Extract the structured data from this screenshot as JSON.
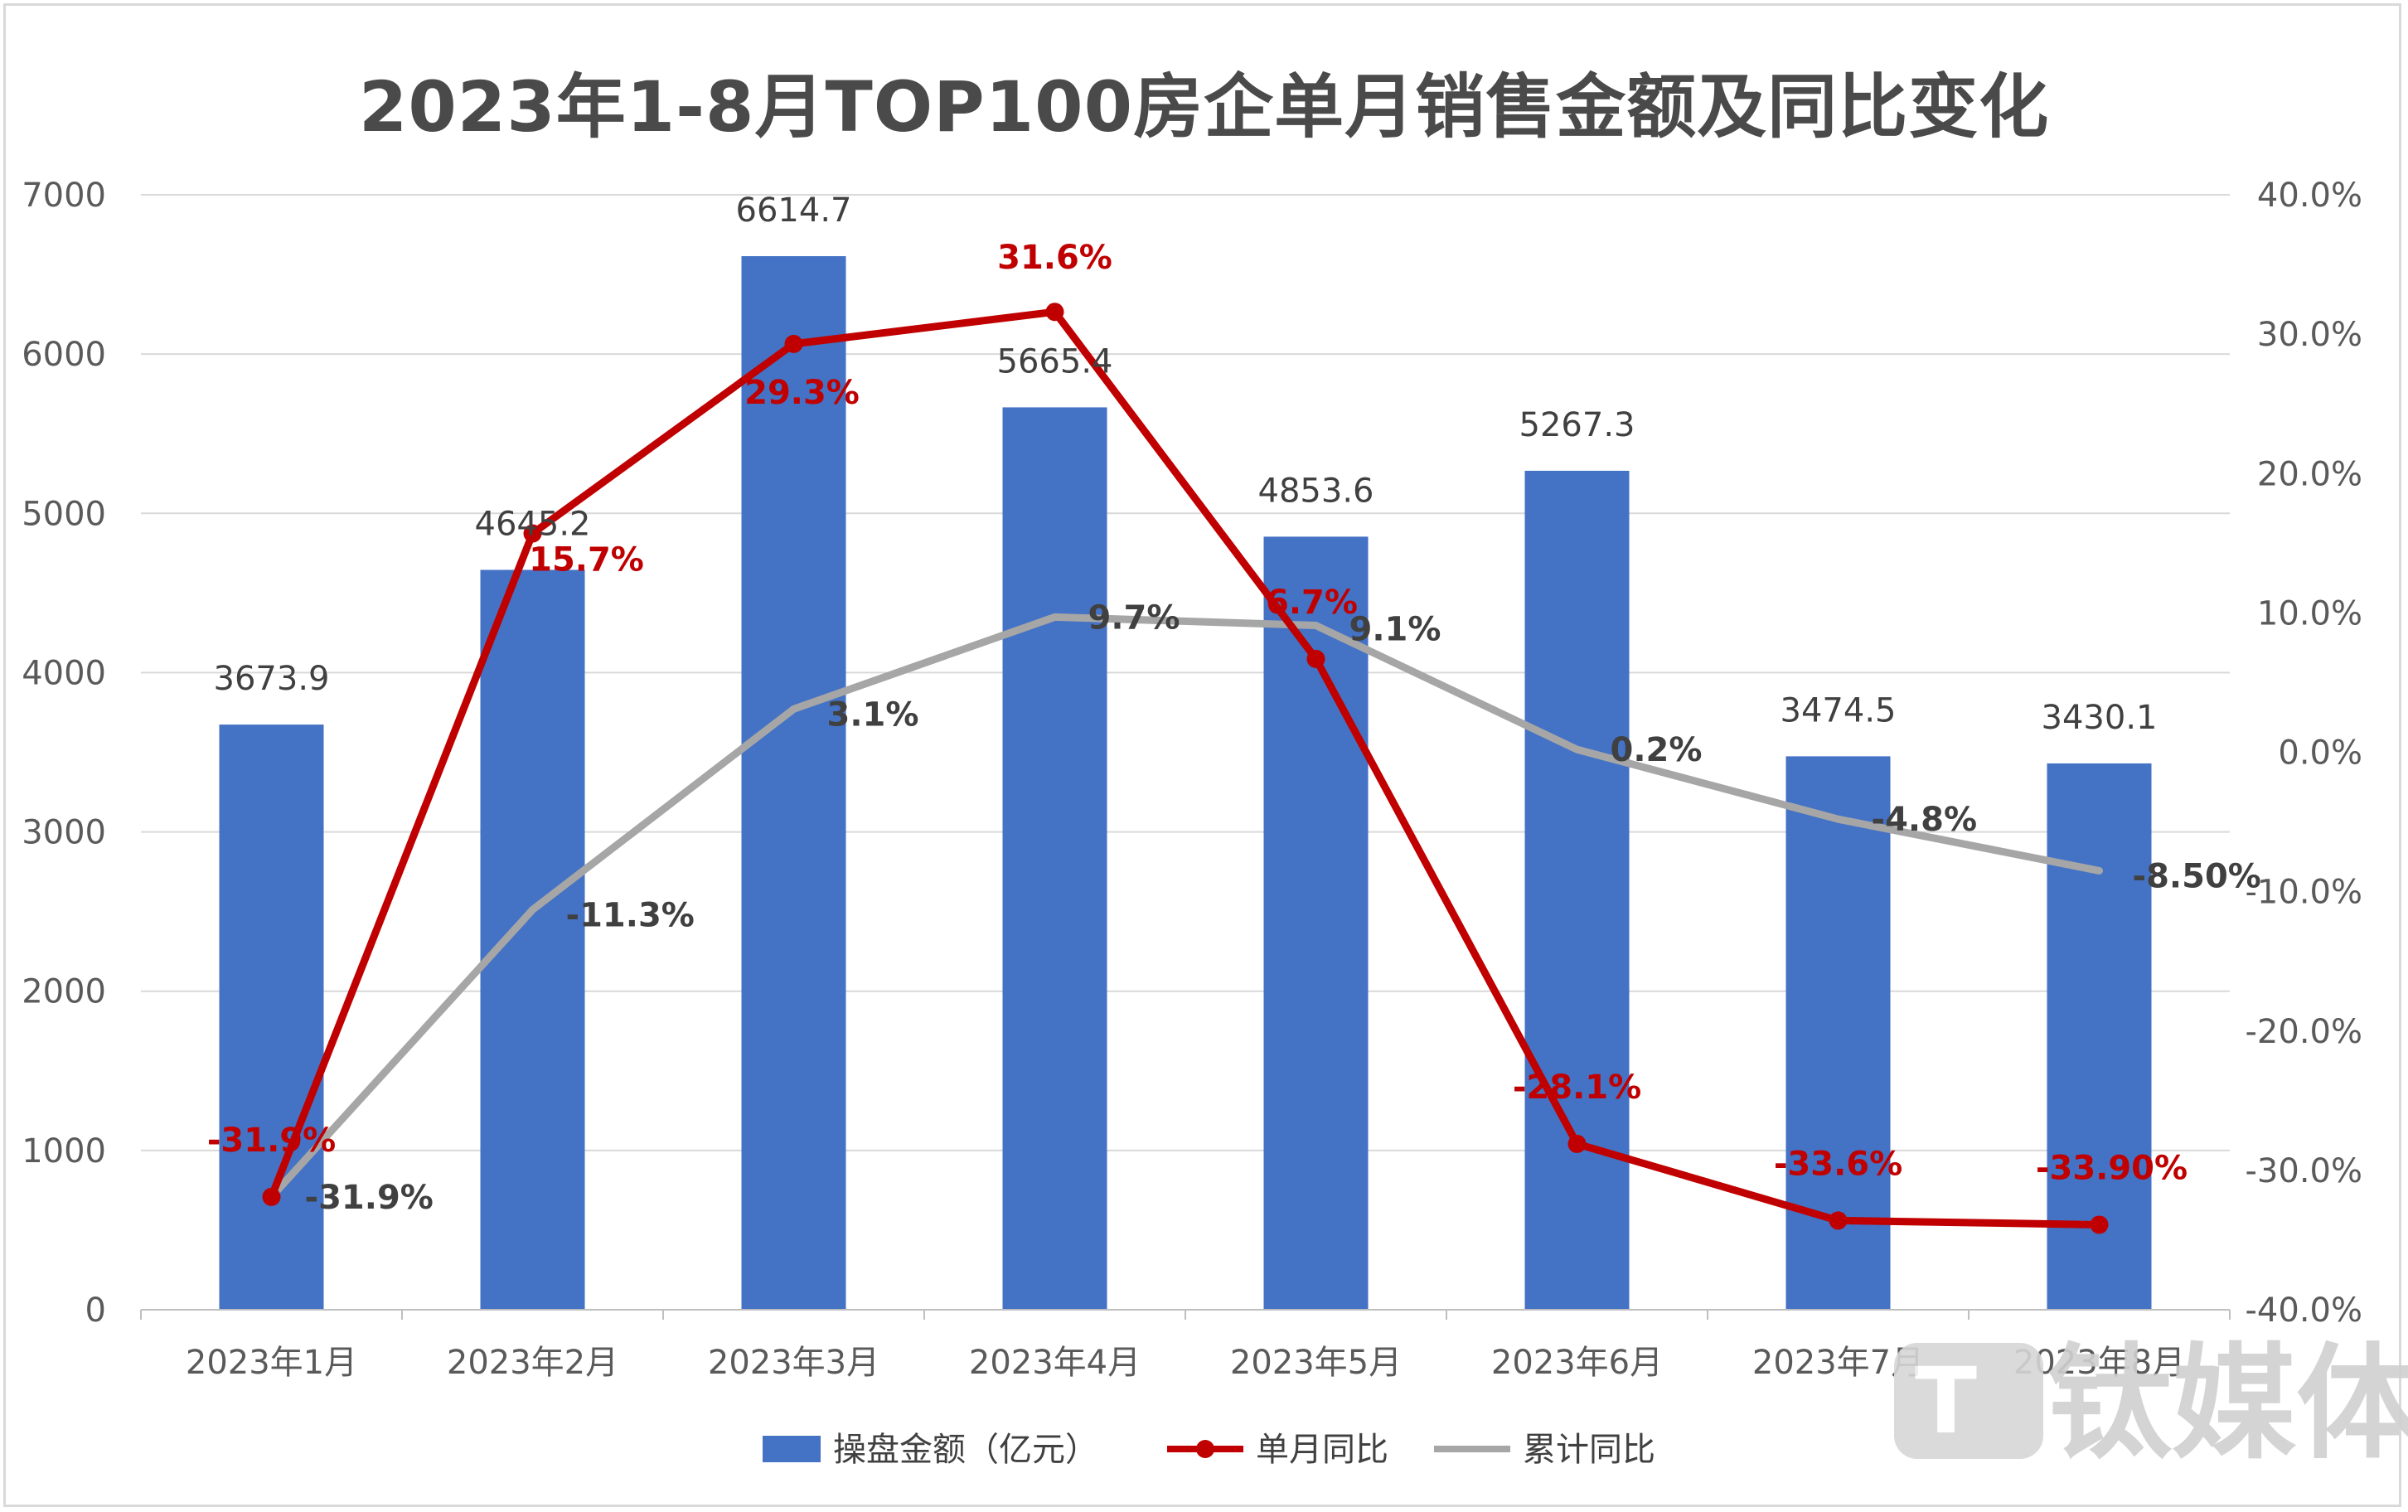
{
  "chart_data": {
    "type": "bar",
    "title": "2023年1-8月TOP100房企单月销售金额及同比变化",
    "categories": [
      "2023年1月",
      "2023年2月",
      "2023年3月",
      "2023年4月",
      "2023年5月",
      "2023年6月",
      "2023年7月",
      "2023年8月"
    ],
    "left_axis": {
      "ylim": [
        0,
        7000
      ],
      "ticks": [
        "0",
        "1000",
        "2000",
        "3000",
        "4000",
        "5000",
        "6000",
        "7000"
      ]
    },
    "right_axis": {
      "ylim": [
        -40,
        40
      ],
      "ticks": [
        "-40.0%",
        "-30.0%",
        "-20.0%",
        "-10.0%",
        "0.0%",
        "10.0%",
        "20.0%",
        "30.0%",
        "40.0%"
      ]
    },
    "grid": true,
    "legend_position": "bottom",
    "series": [
      {
        "name": "操盘金额（亿元）",
        "type": "bar",
        "axis": "left",
        "color": "#4472c4",
        "values": [
          3673.9,
          4645.2,
          6614.7,
          5665.4,
          4853.6,
          5267.3,
          3474.5,
          3430.1
        ],
        "labels": [
          "3673.9",
          "4645.2",
          "6614.7",
          "5665.4",
          "4853.6",
          "5267.3",
          "3474.5",
          "3430.1"
        ]
      },
      {
        "name": "单月同比",
        "type": "line",
        "axis": "right",
        "color": "#c00000",
        "values": [
          -31.9,
          15.7,
          29.3,
          31.6,
          6.7,
          -28.1,
          -33.6,
          -33.9
        ],
        "labels": [
          "-31.9%",
          "15.7%",
          "29.3%",
          "31.6%",
          "6.7%",
          "-28.1%",
          "-33.6%",
          "-33.90%"
        ]
      },
      {
        "name": "累计同比",
        "type": "line",
        "axis": "right",
        "color": "#a6a6a6",
        "values": [
          -31.9,
          -11.3,
          3.1,
          9.7,
          9.1,
          0.2,
          -4.8,
          -8.5
        ],
        "labels": [
          "-31.9%",
          "-11.3%",
          "3.1%",
          "9.7%",
          "9.1%",
          "0.2%",
          "-4.8%",
          "-8.50%"
        ]
      }
    ]
  },
  "watermark": {
    "text": "钛媒体",
    "icon": "tmt-logo-icon"
  }
}
